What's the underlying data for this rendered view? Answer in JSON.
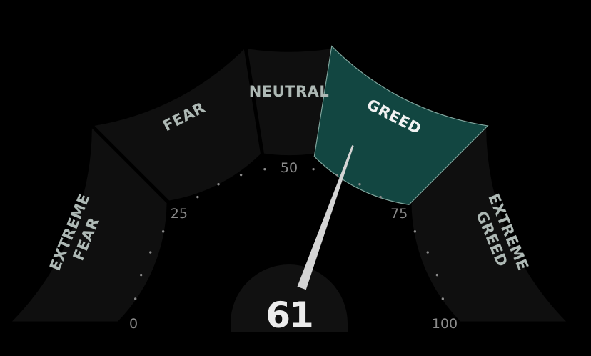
{
  "gauge": {
    "value": 61,
    "value_label": "61",
    "range": [
      0,
      100
    ],
    "segments": [
      {
        "lines": [
          "EXTREME",
          "FEAR"
        ],
        "from": 0,
        "to": 25,
        "active": false
      },
      {
        "lines": [
          "FEAR"
        ],
        "from": 25,
        "to": 45,
        "active": false
      },
      {
        "lines": [
          "NEUTRAL"
        ],
        "from": 45,
        "to": 55,
        "active": false
      },
      {
        "lines": [
          "GREED"
        ],
        "from": 55,
        "to": 75,
        "active": true
      },
      {
        "lines": [
          "EXTREME",
          "GREED"
        ],
        "from": 75,
        "to": 100,
        "active": false
      }
    ],
    "tick_labels": [
      {
        "value": 0,
        "label": "0"
      },
      {
        "value": 25,
        "label": "25"
      },
      {
        "value": 50,
        "label": "50"
      },
      {
        "value": 75,
        "label": "75"
      },
      {
        "value": 100,
        "label": "100"
      }
    ]
  },
  "colors": {
    "background": "#000000",
    "segment_inactive": "#0f0f0f",
    "segment_active": "#124641",
    "segment_active_border": "#7fa49c",
    "segment_label": "#aeb9b5",
    "segment_label_active": "#f2f2f2",
    "tick_dot": "#8a8a8a",
    "tick_label": "#8a8a8a",
    "needle": "#d4d4d4",
    "hub": "#111111",
    "value_text": "#ececec"
  }
}
